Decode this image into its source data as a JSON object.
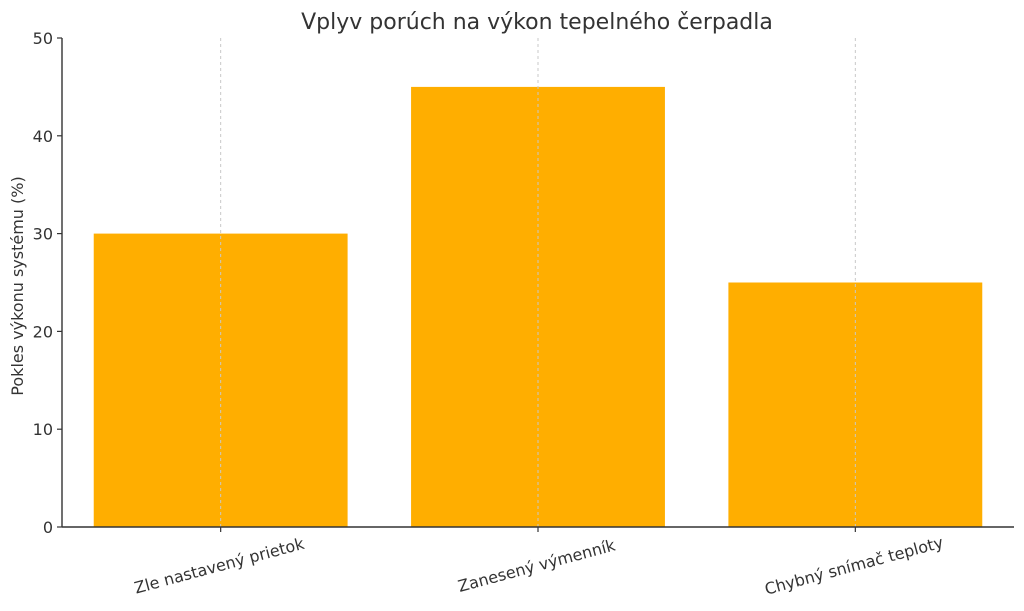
{
  "chart_data": {
    "type": "bar",
    "title": "Vplyv porúch na výkon tepelného čerpadla",
    "xlabel": "",
    "ylabel": "Pokles výkonu systému (%)",
    "categories": [
      "Zle nastavený prietok",
      "Zanesený výmenník",
      "Chybný snímač teploty"
    ],
    "values": [
      30,
      45,
      25
    ],
    "ylim": [
      0,
      50
    ],
    "yticks": [
      0,
      10,
      20,
      30,
      40,
      50
    ],
    "grid": "vertical dashed at category centers",
    "bar_color": "#FFAE00",
    "legend": "none"
  }
}
